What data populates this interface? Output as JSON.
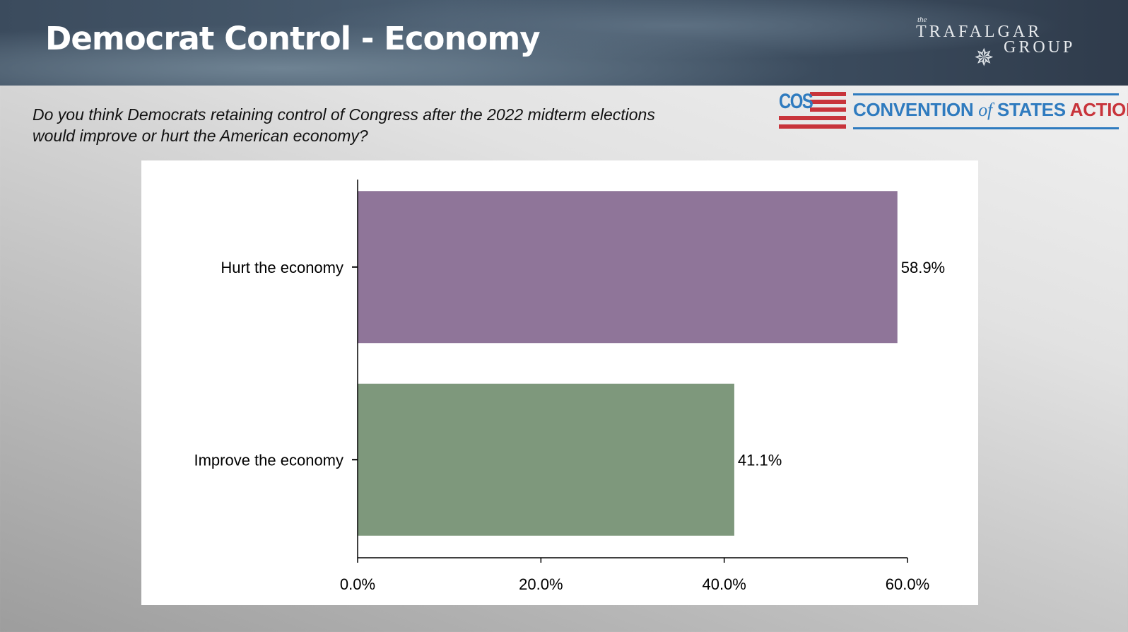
{
  "slide": {
    "title": "Democrat Control - Economy",
    "question_line1": "Do you think Democrats retaining control of Congress after the 2022 midterm elections",
    "question_line2": "would improve or hurt the American economy?"
  },
  "logos": {
    "trafalgar": {
      "the": "the",
      "line1": "TRAFALGAR",
      "line2": "GROUP",
      "icon": "compass-star-icon"
    },
    "cos": {
      "abbr": "COS",
      "name_part1": "CONVENTION",
      "name_of": "of",
      "name_part2": "STATES",
      "name_part3": "ACTION",
      "blue": "#2f7bbf",
      "red": "#c8343b"
    }
  },
  "chart_data": {
    "type": "bar",
    "orientation": "horizontal",
    "categories": [
      "Hurt the economy",
      "Improve the economy"
    ],
    "values": [
      58.9,
      41.1
    ],
    "data_labels": [
      "58.9%",
      "41.1%"
    ],
    "colors": [
      "#8f7599",
      "#7e987c"
    ],
    "xlim": [
      0,
      60
    ],
    "xticks": [
      0,
      20,
      40,
      60
    ],
    "xtick_labels": [
      "0.0%",
      "20.0%",
      "40.0%",
      "60.0%"
    ],
    "grid": false,
    "legend": "none",
    "title": "",
    "xlabel": "",
    "ylabel": ""
  }
}
